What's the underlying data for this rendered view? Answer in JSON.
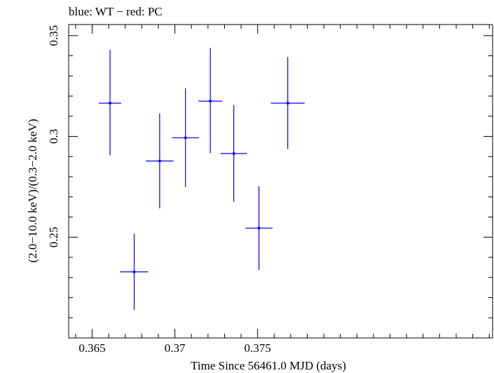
{
  "chart_data": {
    "type": "scatter",
    "title": "blue: WT − red: PC",
    "xlabel": "Time Since 56461.0 MJD (days)",
    "ylabel": "(2.0−10.0 keV)/(0.3−2.0 keV)",
    "xlim": [
      0.36358,
      0.3892
    ],
    "ylim": [
      0.2,
      0.3555
    ],
    "x_ticks": [
      0.365,
      0.37,
      0.375
    ],
    "x_tick_labels": [
      "0.365",
      "0.37",
      "0.375"
    ],
    "y_ticks": [
      0.25,
      0.3,
      0.35
    ],
    "y_tick_labels": [
      "0.25",
      "0.3",
      "0.35"
    ],
    "x_minor_step": 0.001,
    "y_minor_step": 0.01,
    "grid": false,
    "series": [
      {
        "color": "#0000ff",
        "points": [
          {
            "x": 0.36608,
            "xerr": 0.00067,
            "y": 0.3165,
            "yerr_low": 0.0259,
            "yerr_high": 0.0265
          },
          {
            "x": 0.36754,
            "xerr": 0.00085,
            "y": 0.2328,
            "yerr_low": 0.0189,
            "yerr_high": 0.019
          },
          {
            "x": 0.36908,
            "xerr": 0.00084,
            "y": 0.2878,
            "yerr_low": 0.0235,
            "yerr_high": 0.0236
          },
          {
            "x": 0.37064,
            "xerr": 0.00082,
            "y": 0.2993,
            "yerr_low": 0.0244,
            "yerr_high": 0.0246
          },
          {
            "x": 0.37214,
            "xerr": 0.00072,
            "y": 0.3175,
            "yerr_low": 0.0258,
            "yerr_high": 0.0264
          },
          {
            "x": 0.37356,
            "xerr": 0.0008,
            "y": 0.2915,
            "yerr_low": 0.0239,
            "yerr_high": 0.024
          },
          {
            "x": 0.37508,
            "xerr": 0.00082,
            "y": 0.2545,
            "yerr_low": 0.0208,
            "yerr_high": 0.0208
          },
          {
            "x": 0.37682,
            "xerr": 0.00102,
            "y": 0.3165,
            "yerr_low": 0.0228,
            "yerr_high": 0.0229
          }
        ]
      }
    ]
  }
}
